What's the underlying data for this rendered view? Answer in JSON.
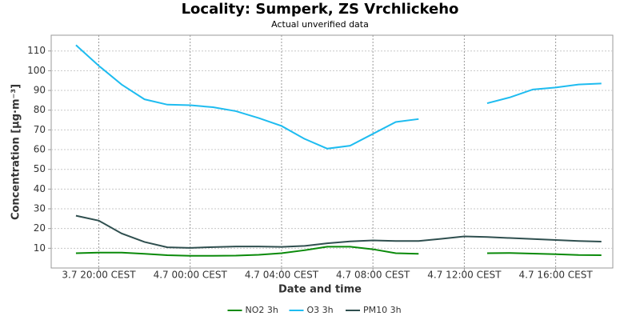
{
  "chart_data": {
    "type": "line",
    "title": "Locality: Sumperk, ZS Vrchlickeho",
    "subtitle": "Actual unverified data",
    "x_label": "Date and time",
    "y_label": "Concentration [µg·m⁻³]",
    "x": [
      "3.7 19:00",
      "3.7 20:00",
      "3.7 21:00",
      "3.7 22:00",
      "3.7 23:00",
      "4.7 00:00",
      "4.7 01:00",
      "4.7 02:00",
      "4.7 03:00",
      "4.7 04:00",
      "4.7 05:00",
      "4.7 06:00",
      "4.7 07:00",
      "4.7 08:00",
      "4.7 09:00",
      "4.7 10:00",
      "4.7 11:00",
      "4.7 12:00",
      "4.7 13:00",
      "4.7 14:00",
      "4.7 15:00",
      "4.7 16:00",
      "4.7 17:00",
      "4.7 18:00"
    ],
    "series": [
      {
        "name": "NO2 3h",
        "color": "#0a8a0a",
        "values": [
          7.5,
          7.8,
          7.8,
          7.2,
          6.5,
          6.2,
          6.2,
          6.3,
          6.7,
          7.5,
          9,
          10.8,
          10.8,
          9.5,
          7.5,
          7.2,
          null,
          null,
          7.5,
          7.6,
          7.3,
          7,
          6.6,
          6.5
        ]
      },
      {
        "name": "O3 3h",
        "color": "#1ebcf0",
        "values": [
          113,
          102.5,
          93,
          85.5,
          82.8,
          82.5,
          81.5,
          79.5,
          76,
          72,
          65.5,
          60.5,
          62,
          68,
          74,
          75.5,
          null,
          null,
          83.5,
          86.5,
          90.5,
          91.5,
          93,
          93.5
        ]
      },
      {
        "name": "PM10 3h",
        "color": "#2f4f4f",
        "values": [
          26.5,
          24,
          17.5,
          13.2,
          10.5,
          10.2,
          10.6,
          10.9,
          10.9,
          10.7,
          11.2,
          12.5,
          13.5,
          14,
          13.7,
          13.7,
          14.8,
          16,
          15.7,
          15.2,
          14.7,
          14.2,
          13.7,
          13.4
        ]
      }
    ],
    "xlim": [
      "3.7 17:55",
      "4.7 18:30"
    ],
    "xticks": [
      {
        "value": "3.7 20:00",
        "label": "3.7 20:00 CEST"
      },
      {
        "value": "4.7 00:00",
        "label": "4.7 00:00 CEST"
      },
      {
        "value": "4.7 04:00",
        "label": "4.7 04:00 CEST"
      },
      {
        "value": "4.7 08:00",
        "label": "4.7 08:00 CEST"
      },
      {
        "value": "4.7 12:00",
        "label": "4.7 12:00 CEST"
      },
      {
        "value": "4.7 16:00",
        "label": "4.7 16:00 CEST"
      }
    ],
    "ylim": [
      0,
      118
    ],
    "yticks": [
      10,
      20,
      30,
      40,
      50,
      60,
      70,
      80,
      90,
      100,
      110
    ],
    "grid": true,
    "legend": "bottom"
  }
}
